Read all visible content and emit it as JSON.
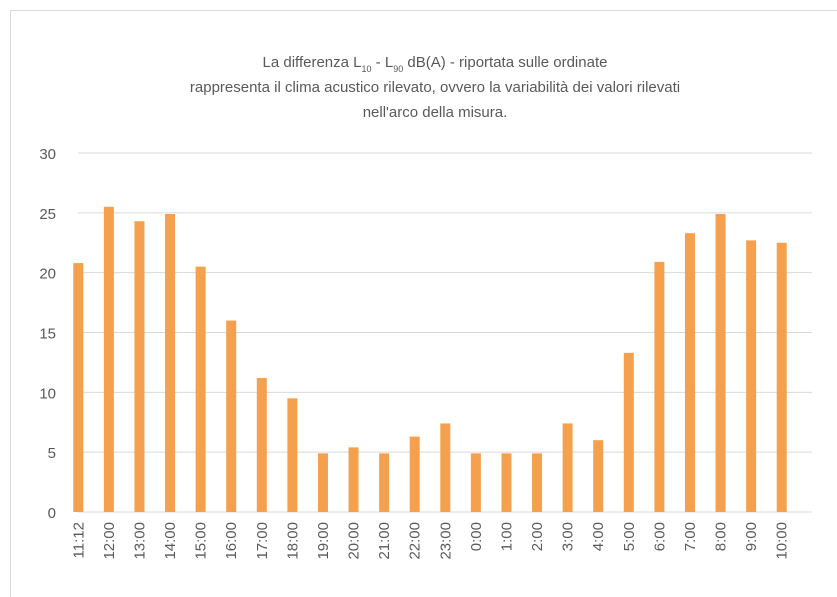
{
  "chart_data": {
    "type": "bar",
    "title": [
      [
        {
          "text": "La differenza L"
        },
        {
          "text": "10",
          "sub": true
        },
        {
          "text": " - L"
        },
        {
          "text": "90",
          "sub": true
        },
        {
          "text": "  dB(A) - riportata sulle ordinate"
        }
      ],
      "rappresenta il clima acustico rilevato, ovvero  la variabilità dei valori rilevati",
      "nell'arco della misura."
    ],
    "categories": [
      "11:12",
      "12:00",
      "13:00",
      "14:00",
      "15:00",
      "16:00",
      "17:00",
      "18:00",
      "19:00",
      "20:00",
      "21:00",
      "22:00",
      "23:00",
      "0:00",
      "1:00",
      "2:00",
      "3:00",
      "4:00",
      "5:00",
      "6:00",
      "7:00",
      "8:00",
      "9:00",
      "10:00"
    ],
    "values": [
      20.8,
      25.5,
      24.3,
      24.9,
      20.5,
      16.0,
      11.2,
      9.5,
      4.9,
      5.4,
      4.9,
      6.3,
      7.4,
      4.9,
      4.9,
      4.9,
      7.4,
      6.0,
      13.3,
      20.9,
      23.3,
      24.9,
      22.7,
      22.5
    ],
    "color": "#f5a04c",
    "ylim": [
      0,
      30
    ],
    "yticks": [
      0,
      5,
      10,
      15,
      20,
      25,
      30
    ],
    "grid": true
  }
}
